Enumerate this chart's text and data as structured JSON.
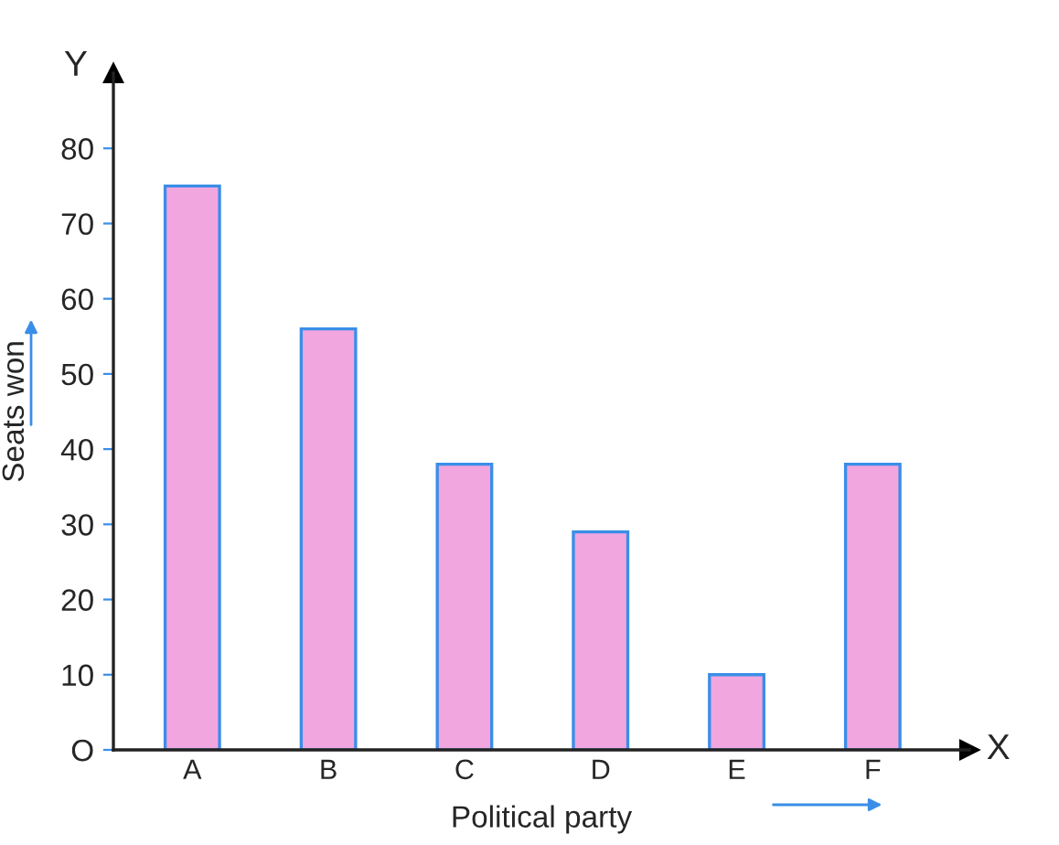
{
  "chart_data": {
    "type": "bar",
    "categories": [
      "A",
      "B",
      "C",
      "D",
      "E",
      "F"
    ],
    "values": [
      75,
      56,
      38,
      29,
      10,
      38
    ],
    "color": "#f2a6df",
    "xlabel": "Political party",
    "ylabel": "Seats won",
    "annotations": [
      "X",
      "Y"
    ],
    "ylim": [
      0,
      90
    ],
    "yticks": [
      {
        "value": 0,
        "label": "O"
      },
      10,
      20,
      30,
      40,
      50,
      60,
      70,
      80
    ],
    "grid": false,
    "legend": false
  }
}
